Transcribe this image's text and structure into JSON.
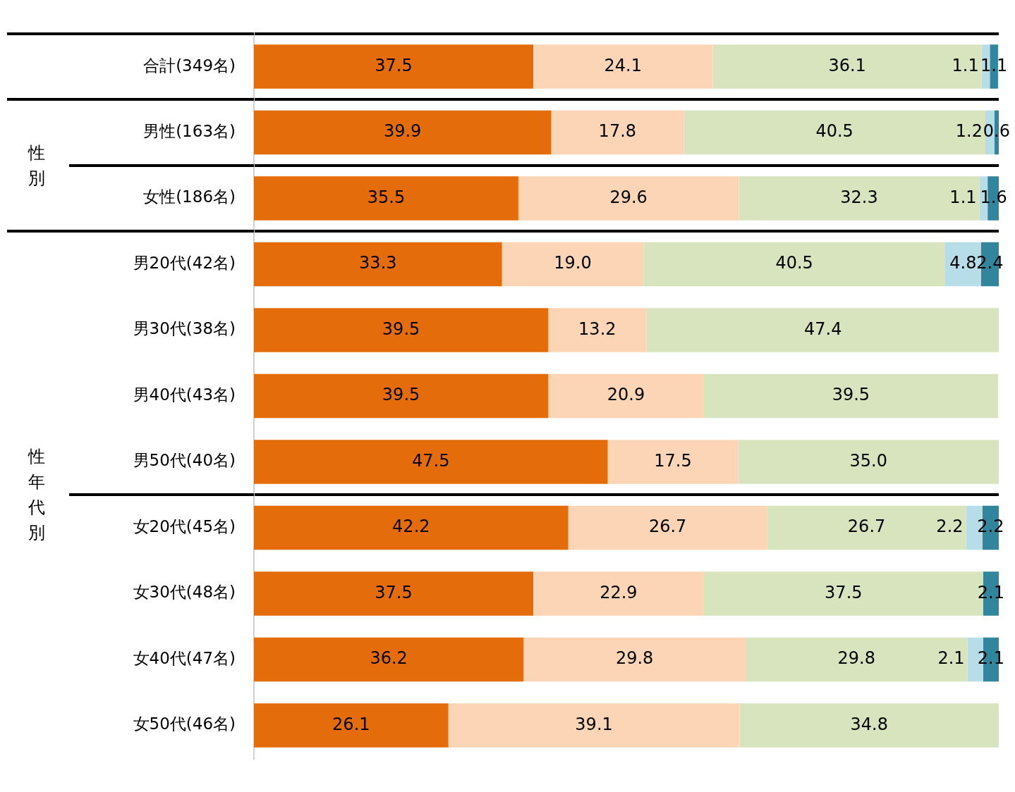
{
  "chart_data": {
    "type": "bar",
    "orientation": "horizontal",
    "stacked": true,
    "categories": [
      "合計(349名)",
      "男性(163名)",
      "女性(186名)",
      "男20代(42名)",
      "男30代(38名)",
      "男40代(43名)",
      "男50代(40名)",
      "女20代(45名)",
      "女30代(48名)",
      "女40代(47名)",
      "女50代(46名)"
    ],
    "series": [
      {
        "color": "#e46c0a",
        "values": [
          37.5,
          39.9,
          35.5,
          33.3,
          39.5,
          39.5,
          47.5,
          42.2,
          37.5,
          36.2,
          26.1
        ]
      },
      {
        "color": "#fbd5b5",
        "values": [
          24.1,
          17.8,
          29.6,
          19.0,
          13.2,
          20.9,
          17.5,
          26.7,
          22.9,
          29.8,
          39.1
        ],
        "value_labels": [
          "24.1",
          "17.8",
          "29.6",
          "19.0",
          "13.2",
          "20.9",
          "17.5",
          "26.7",
          "22.9",
          "29.8",
          "39.1"
        ]
      },
      {
        "color": "#d7e4bd",
        "values": [
          36.1,
          40.5,
          32.3,
          40.5,
          47.4,
          39.5,
          35.0,
          26.7,
          37.5,
          29.8,
          34.8
        ],
        "value_labels": [
          "36.1",
          "40.5",
          "32.3",
          "40.5",
          "47.4",
          "39.5",
          "35.0",
          "26.7",
          "37.5",
          "29.8",
          "34.8"
        ]
      },
      {
        "color": "#b7dee8",
        "values": [
          1.1,
          1.2,
          1.1,
          4.8,
          null,
          null,
          null,
          2.2,
          null,
          2.1,
          null
        ]
      },
      {
        "color": "#31859c",
        "values": [
          1.1,
          0.6,
          1.6,
          2.4,
          null,
          null,
          null,
          2.2,
          2.1,
          2.1,
          null
        ]
      }
    ],
    "xlim": [
      0,
      100
    ],
    "tick_labels": "y",
    "data_labels": true,
    "grid": "y",
    "legend": false,
    "annotations": [
      "性別",
      "性年代別"
    ]
  }
}
